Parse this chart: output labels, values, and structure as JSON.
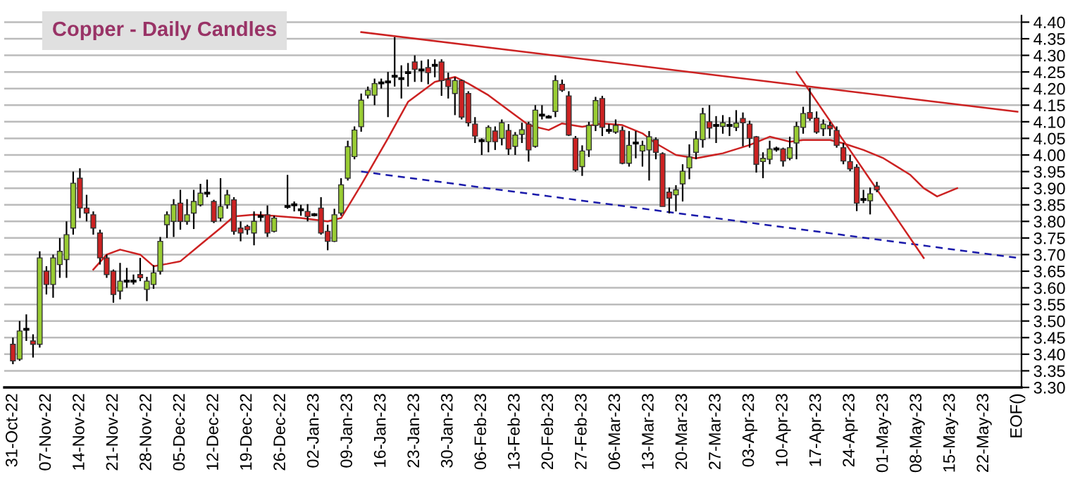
{
  "chart_data": {
    "type": "candlestick",
    "title": "Copper - Daily Candles",
    "ylim": [
      3.3,
      4.42
    ],
    "categories": [
      "31-Oct-22",
      null,
      null,
      null,
      null,
      "07-Nov-22",
      null,
      null,
      null,
      null,
      "14-Nov-22",
      null,
      null,
      null,
      null,
      "21-Nov-22",
      null,
      null,
      null,
      null,
      "28-Nov-22",
      null,
      null,
      null,
      null,
      "05-Dec-22",
      null,
      null,
      null,
      null,
      "12-Dec-22",
      null,
      null,
      null,
      null,
      "19-Dec-22",
      null,
      null,
      null,
      null,
      "26-Dec-22",
      null,
      null,
      null,
      null,
      "02-Jan-23",
      null,
      null,
      null,
      null,
      "09-Jan-23",
      null,
      null,
      null,
      null,
      "16-Jan-23",
      null,
      null,
      null,
      null,
      "23-Jan-23",
      null,
      null,
      null,
      null,
      "30-Jan-23",
      null,
      null,
      null,
      null,
      "06-Feb-23",
      null,
      null,
      null,
      null,
      "13-Feb-23",
      null,
      null,
      null,
      null,
      "20-Feb-23",
      null,
      null,
      null,
      null,
      "27-Feb-23",
      null,
      null,
      null,
      null,
      "06-Mar-23",
      null,
      null,
      null,
      null,
      "13-Mar-23",
      null,
      null,
      null,
      null,
      "20-Mar-23",
      null,
      null,
      null,
      null,
      "27-Mar-23",
      null,
      null,
      null,
      null,
      "03-Apr-23",
      null,
      null,
      null,
      null,
      "10-Apr-23",
      null,
      null,
      null,
      null,
      "17-Apr-23",
      null,
      null,
      null,
      null,
      "24-Apr-23",
      null,
      null,
      null,
      null,
      "01-May-23",
      null,
      null,
      null,
      null,
      "08-May-23",
      null,
      null,
      null,
      null,
      "15-May-23",
      null,
      null,
      null,
      null,
      "22-May-23",
      null,
      null,
      null,
      null,
      "EOF()"
    ],
    "yticks": [
      {
        "value": 3.3,
        "label": "3.30"
      },
      {
        "value": 3.35,
        "label": "3.35"
      },
      {
        "value": 3.4,
        "label": "3.40"
      },
      {
        "value": 3.45,
        "label": "3.45"
      },
      {
        "value": 3.5,
        "label": "3.50"
      },
      {
        "value": 3.55,
        "label": "3.55"
      },
      {
        "value": 3.6,
        "label": "3.60"
      },
      {
        "value": 3.65,
        "label": "3.65"
      },
      {
        "value": 3.7,
        "label": "3.70"
      },
      {
        "value": 3.75,
        "label": "3.75"
      },
      {
        "value": 3.8,
        "label": "3.80"
      },
      {
        "value": 3.85,
        "label": "3.85"
      },
      {
        "value": 3.9,
        "label": "3.90"
      },
      {
        "value": 3.95,
        "label": "3.95"
      },
      {
        "value": 4.0,
        "label": "4.00"
      },
      {
        "value": 4.05,
        "label": "4.05"
      },
      {
        "value": 4.1,
        "label": "4.10"
      },
      {
        "value": 4.15,
        "label": "4.15"
      },
      {
        "value": 4.2,
        "label": "4.20"
      },
      {
        "value": 4.25,
        "label": "4.25"
      },
      {
        "value": 4.3,
        "label": "4.30"
      },
      {
        "value": 4.35,
        "label": "4.35"
      },
      {
        "value": 4.4,
        "label": "4.40"
      }
    ],
    "grid": "y",
    "ohlc": [
      [
        3.43,
        3.45,
        3.37,
        3.38
      ],
      [
        3.385,
        3.5,
        3.38,
        3.47
      ],
      [
        3.475,
        3.52,
        3.44,
        3.475
      ],
      [
        3.44,
        3.46,
        3.39,
        3.43
      ],
      [
        3.43,
        3.71,
        3.42,
        3.69
      ],
      [
        3.65,
        3.665,
        3.58,
        3.61
      ],
      [
        3.61,
        3.7,
        3.57,
        3.69
      ],
      [
        3.67,
        3.75,
        3.63,
        3.71
      ],
      [
        3.685,
        3.8,
        3.63,
        3.76
      ],
      [
        3.78,
        3.95,
        3.76,
        3.915
      ],
      [
        3.93,
        3.96,
        3.81,
        3.84
      ],
      [
        3.84,
        3.88,
        3.8,
        3.825
      ],
      [
        3.82,
        3.83,
        3.76,
        3.78
      ],
      [
        3.765,
        3.775,
        3.67,
        3.69
      ],
      [
        3.69,
        3.7,
        3.63,
        3.64
      ],
      [
        3.65,
        3.655,
        3.555,
        3.58
      ],
      [
        3.59,
        3.675,
        3.565,
        3.62
      ],
      [
        3.62,
        3.66,
        3.6,
        3.62
      ],
      [
        3.62,
        3.64,
        3.61,
        3.62
      ],
      [
        3.64,
        3.69,
        3.62,
        3.63
      ],
      [
        3.595,
        3.633,
        3.56,
        3.62
      ],
      [
        3.61,
        3.668,
        3.597,
        3.645
      ],
      [
        3.65,
        3.753,
        3.64,
        3.74
      ],
      [
        3.79,
        3.83,
        3.75,
        3.82
      ],
      [
        3.8,
        3.867,
        3.753,
        3.85
      ],
      [
        3.855,
        3.895,
        3.775,
        3.8
      ],
      [
        3.8,
        3.867,
        3.79,
        3.82
      ],
      [
        3.825,
        3.895,
        3.777,
        3.86
      ],
      [
        3.85,
        3.913,
        3.845,
        3.885
      ],
      [
        3.885,
        3.926,
        3.873,
        3.885
      ],
      [
        3.86,
        3.865,
        3.795,
        3.8
      ],
      [
        3.81,
        3.93,
        3.8,
        3.845
      ],
      [
        3.85,
        3.895,
        3.838,
        3.88
      ],
      [
        3.865,
        3.873,
        3.76,
        3.77
      ],
      [
        3.78,
        3.8,
        3.74,
        3.765
      ],
      [
        3.785,
        3.79,
        3.76,
        3.775
      ],
      [
        3.765,
        3.83,
        3.728,
        3.8
      ],
      [
        3.815,
        3.83,
        3.8,
        3.815
      ],
      [
        3.82,
        3.848,
        3.753,
        3.765
      ],
      [
        3.77,
        3.817,
        3.767,
        3.81
      ],
      null,
      [
        3.845,
        3.94,
        3.838,
        3.845
      ],
      [
        3.85,
        3.86,
        3.83,
        3.85
      ],
      [
        3.835,
        3.85,
        3.817,
        3.835
      ],
      [
        3.83,
        3.852,
        3.8,
        3.815
      ],
      [
        3.82,
        3.825,
        3.815,
        3.82
      ],
      [
        3.84,
        3.873,
        3.76,
        3.765
      ],
      [
        3.77,
        3.79,
        3.713,
        3.74
      ],
      [
        3.74,
        3.838,
        3.738,
        3.82
      ],
      [
        3.825,
        3.93,
        3.817,
        3.91
      ],
      [
        3.93,
        4.043,
        3.923,
        4.025
      ],
      [
        3.995,
        4.086,
        3.987,
        4.075
      ],
      [
        4.085,
        4.185,
        4.07,
        4.165
      ],
      [
        4.18,
        4.206,
        4.17,
        4.195
      ],
      [
        4.18,
        4.23,
        4.15,
        4.215
      ],
      [
        4.217,
        4.23,
        4.2,
        4.217
      ],
      [
        4.22,
        4.25,
        4.114,
        4.22
      ],
      [
        4.237,
        4.355,
        4.206,
        4.237
      ],
      [
        4.23,
        4.27,
        4.17,
        4.23
      ],
      [
        4.248,
        4.277,
        4.206,
        4.248
      ],
      [
        4.28,
        4.3,
        4.22,
        4.258
      ],
      [
        4.256,
        4.284,
        4.22,
        4.256
      ],
      [
        4.263,
        4.288,
        4.213,
        4.248
      ],
      [
        4.27,
        4.288,
        4.234,
        4.27
      ],
      [
        4.28,
        4.288,
        4.178,
        4.224
      ],
      [
        4.227,
        4.248,
        4.17,
        4.206
      ],
      [
        4.185,
        4.234,
        4.12,
        4.224
      ],
      [
        4.224,
        4.227,
        4.107,
        4.114
      ],
      [
        4.185,
        4.192,
        4.086,
        4.097
      ],
      [
        4.093,
        4.114,
        4.036,
        4.057
      ],
      [
        4.043,
        4.05,
        4.0,
        4.043
      ],
      [
        4.04,
        4.089,
        4.008,
        4.083
      ],
      [
        4.072,
        4.086,
        4.015,
        4.04
      ],
      [
        4.05,
        4.107,
        4.029,
        4.097
      ],
      [
        4.074,
        4.093,
        4.0,
        4.018
      ],
      [
        4.026,
        4.069,
        4.0,
        4.06
      ],
      [
        4.062,
        4.097,
        4.036,
        4.076
      ],
      [
        4.093,
        4.1,
        3.98,
        4.015
      ],
      [
        4.026,
        4.15,
        4.022,
        4.135
      ],
      [
        4.12,
        4.15,
        4.107,
        4.12
      ],
      [
        4.114,
        4.12,
        4.11,
        4.114
      ],
      [
        4.131,
        4.24,
        4.114,
        4.224
      ],
      [
        4.213,
        4.227,
        4.19,
        4.195
      ],
      [
        4.178,
        4.192,
        4.057,
        4.06
      ],
      [
        4.05,
        4.057,
        3.95,
        3.955
      ],
      [
        3.965,
        4.029,
        3.937,
        4.012
      ],
      [
        4.015,
        4.1,
        3.994,
        4.089
      ],
      [
        4.089,
        4.175,
        4.072,
        4.164
      ],
      [
        4.17,
        4.178,
        4.057,
        4.083
      ],
      [
        4.074,
        4.093,
        4.064,
        4.074
      ],
      [
        4.069,
        4.107,
        4.064,
        4.089
      ],
      [
        4.074,
        4.086,
        3.972,
        3.975
      ],
      [
        3.975,
        4.072,
        3.965,
        4.029
      ],
      [
        4.036,
        4.072,
        3.99,
        4.036
      ],
      [
        4.012,
        4.043,
        3.965,
        4.029
      ],
      [
        4.015,
        4.072,
        3.923,
        4.055
      ],
      [
        4.046,
        4.053,
        3.987,
        4.008
      ],
      [
        4.004,
        4.008,
        3.845,
        3.845
      ],
      [
        3.888,
        3.902,
        3.824,
        3.87
      ],
      [
        3.88,
        3.909,
        3.83,
        3.895
      ],
      [
        3.913,
        3.972,
        3.86,
        3.951
      ],
      [
        3.961,
        4.032,
        3.927,
        3.994
      ],
      [
        4.008,
        4.072,
        3.987,
        4.048
      ],
      [
        4.046,
        4.142,
        4.022,
        4.124
      ],
      [
        4.1,
        4.15,
        4.05,
        4.081
      ],
      [
        4.089,
        4.117,
        4.036,
        4.089
      ],
      [
        4.086,
        4.12,
        4.064,
        4.097
      ],
      [
        4.089,
        4.114,
        4.057,
        4.089
      ],
      [
        4.083,
        4.135,
        4.072,
        4.096
      ],
      [
        4.11,
        4.128,
        4.026,
        4.097
      ],
      [
        4.093,
        4.103,
        4.022,
        4.05
      ],
      [
        4.055,
        4.057,
        3.947,
        3.972
      ],
      [
        3.98,
        4.008,
        3.93,
        3.99
      ],
      [
        3.987,
        4.043,
        3.972,
        4.018
      ],
      [
        4.018,
        4.025,
        4.01,
        4.018
      ],
      [
        4.018,
        4.022,
        3.965,
        3.982
      ],
      [
        3.99,
        4.055,
        3.984,
        4.022
      ],
      [
        4.036,
        4.1,
        3.987,
        4.086
      ],
      [
        4.083,
        4.145,
        4.064,
        4.125
      ],
      [
        4.128,
        4.202,
        4.103,
        4.11
      ],
      [
        4.111,
        4.131,
        4.064,
        4.069
      ],
      [
        4.079,
        4.107,
        4.057,
        4.093
      ],
      [
        4.089,
        4.1,
        4.057,
        4.079
      ],
      [
        4.074,
        4.086,
        4.022,
        4.029
      ],
      [
        4.022,
        4.036,
        3.972,
        3.982
      ],
      [
        3.98,
        4.0,
        3.951,
        3.958
      ],
      [
        3.963,
        3.972,
        3.831,
        3.855
      ],
      [
        3.866,
        3.895,
        3.855,
        3.866
      ],
      [
        3.862,
        3.902,
        3.821,
        3.883
      ],
      [
        3.906,
        3.919,
        3.888,
        3.895
      ],
      null,
      null,
      null,
      null,
      null,
      null,
      null,
      null,
      null,
      null,
      null,
      null,
      null,
      null,
      null,
      null,
      null,
      null,
      null,
      null,
      null
    ],
    "colors": [
      "#cc2222",
      "#99cc33",
      "#000000",
      "#cc2222",
      "#99cc33",
      "#cc2222",
      "#99cc33",
      "#99cc33",
      "#99cc33",
      "#99cc33",
      "#cc2222",
      "#cc2222",
      "#cc2222",
      "#cc2222",
      "#cc2222",
      "#cc2222",
      "#99cc33",
      "#000000",
      "#000000",
      "#cc2222",
      "#99cc33",
      "#99cc33",
      "#99cc33",
      "#99cc33",
      "#99cc33",
      "#cc2222",
      "#99cc33",
      "#99cc33",
      "#99cc33",
      "#000000",
      "#cc2222",
      "#99cc33",
      "#99cc33",
      "#cc2222",
      "#cc2222",
      "#cc2222",
      "#99cc33",
      "#000000",
      "#cc2222",
      "#99cc33",
      null,
      "#000000",
      "#000000",
      "#000000",
      "#cc2222",
      "#000000",
      "#cc2222",
      "#cc2222",
      "#99cc33",
      "#99cc33",
      "#99cc33",
      "#99cc33",
      "#99cc33",
      "#99cc33",
      "#99cc33",
      "#000000",
      "#000000",
      "#000000",
      "#000000",
      "#000000",
      "#cc2222",
      "#000000",
      "#cc2222",
      "#000000",
      "#cc2222",
      "#cc2222",
      "#99cc33",
      "#cc2222",
      "#cc2222",
      "#cc2222",
      "#000000",
      "#99cc33",
      "#cc2222",
      "#99cc33",
      "#cc2222",
      "#99cc33",
      "#99cc33",
      "#cc2222",
      "#99cc33",
      "#000000",
      "#000000",
      "#99cc33",
      "#cc2222",
      "#cc2222",
      "#cc2222",
      "#99cc33",
      "#99cc33",
      "#99cc33",
      "#cc2222",
      "#000000",
      "#99cc33",
      "#cc2222",
      "#99cc33",
      "#000000",
      "#99cc33",
      "#99cc33",
      "#cc2222",
      "#cc2222",
      "#cc2222",
      "#99cc33",
      "#99cc33",
      "#99cc33",
      "#99cc33",
      "#99cc33",
      "#cc2222",
      "#000000",
      "#99cc33",
      "#000000",
      "#99cc33",
      "#cc2222",
      "#cc2222",
      "#cc2222",
      "#99cc33",
      "#99cc33",
      "#000000",
      "#cc2222",
      "#99cc33",
      "#99cc33",
      "#99cc33",
      "#cc2222",
      "#cc2222",
      "#99cc33",
      "#cc2222",
      "#cc2222",
      "#cc2222",
      "#cc2222",
      "#cc2222",
      "#000000",
      "#99cc33",
      "#cc2222",
      null,
      null,
      null,
      null,
      null,
      null,
      null,
      null,
      null,
      null,
      null,
      null,
      null,
      null,
      null,
      null,
      null,
      null,
      null,
      null,
      null
    ],
    "series": [
      {
        "type": "line",
        "color": "#cc2222",
        "values": [
          null,
          null,
          null,
          null,
          null,
          null,
          null,
          null,
          null,
          null,
          null,
          null,
          3.655,
          null,
          3.7,
          null,
          3.715,
          null,
          null,
          3.7,
          null,
          3.665,
          null,
          3.672,
          null,
          3.68,
          null,
          null,
          3.73,
          null,
          null,
          3.78,
          null,
          3.815,
          null,
          null,
          3.82,
          null,
          3.818,
          null,
          3.815,
          null,
          null,
          3.81,
          null,
          null,
          null,
          3.8,
          null,
          3.81,
          null,
          null,
          3.91,
          null,
          null,
          null,
          4.05,
          null,
          null,
          4.16,
          null,
          null,
          null,
          4.22,
          null,
          null,
          4.235,
          null,
          4.215,
          null,
          null,
          4.18,
          null,
          null,
          null,
          4.12,
          null,
          4.09,
          null,
          null,
          4.075,
          null,
          4.095,
          null,
          null,
          4.085,
          null,
          null,
          4.095,
          null,
          null,
          4.09,
          null,
          null,
          4.065,
          null,
          4.035,
          null,
          null,
          4.0,
          null,
          null,
          3.99,
          null,
          null,
          null,
          4.005,
          null,
          null,
          null,
          4.03,
          null,
          null,
          4.055,
          null,
          null,
          4.04,
          null,
          4.045,
          null,
          null,
          null,
          4.045,
          null,
          4.035,
          null,
          null,
          4.015,
          null,
          null,
          3.99,
          null,
          null,
          null,
          3.94,
          null,
          3.9,
          null,
          3.875,
          null,
          null,
          3.9,
          null,
          null,
          null,
          null,
          null,
          null,
          null,
          null,
          null
        ]
      },
      {
        "type": "line",
        "color": "#cc2222",
        "values": [
          null,
          null,
          null,
          null,
          null,
          null,
          null,
          null,
          null,
          null,
          null,
          null,
          null,
          null,
          null,
          null,
          null,
          null,
          null,
          null,
          null,
          null,
          null,
          null,
          null,
          null,
          null,
          null,
          null,
          null,
          null,
          null,
          null,
          null,
          null,
          null,
          null,
          null,
          null,
          null,
          null,
          null,
          null,
          null,
          null,
          null,
          null,
          null,
          null,
          null,
          null,
          null,
          4.37,
          null,
          null,
          null,
          null,
          null,
          null,
          null,
          null,
          null,
          null,
          null,
          null,
          null,
          null,
          null,
          null,
          null,
          null,
          null,
          null,
          null,
          null,
          null,
          null,
          null,
          null,
          null,
          null,
          null,
          null,
          null,
          null,
          null,
          null,
          null,
          null,
          null,
          null,
          null,
          null,
          null,
          null,
          null,
          null,
          null,
          null,
          null,
          null,
          null,
          null,
          null,
          null,
          null,
          null,
          null,
          null,
          null,
          null,
          null,
          null,
          null,
          null,
          null,
          null,
          null,
          null,
          null,
          null,
          null,
          null,
          null,
          null,
          null,
          null,
          null,
          null,
          null,
          null,
          null,
          null,
          null,
          null,
          null,
          null,
          null,
          null,
          null,
          null,
          null,
          null,
          null,
          null,
          null,
          null,
          null,
          null,
          null,
          4.13
        ]
      },
      {
        "type": "line",
        "color": "#1a1aaa",
        "line_style": "dashed",
        "values": [
          null,
          null,
          null,
          null,
          null,
          null,
          null,
          null,
          null,
          null,
          null,
          null,
          null,
          null,
          null,
          null,
          null,
          null,
          null,
          null,
          null,
          null,
          null,
          null,
          null,
          null,
          null,
          null,
          null,
          null,
          null,
          null,
          null,
          null,
          null,
          null,
          null,
          null,
          null,
          null,
          null,
          null,
          null,
          null,
          null,
          null,
          null,
          null,
          null,
          null,
          null,
          null,
          3.95,
          null,
          null,
          null,
          null,
          null,
          null,
          null,
          null,
          null,
          null,
          null,
          null,
          null,
          null,
          null,
          null,
          null,
          null,
          null,
          null,
          null,
          null,
          null,
          null,
          null,
          null,
          null,
          null,
          null,
          null,
          null,
          null,
          null,
          null,
          null,
          null,
          null,
          null,
          null,
          null,
          null,
          null,
          null,
          null,
          null,
          null,
          null,
          null,
          null,
          null,
          null,
          null,
          null,
          null,
          null,
          null,
          null,
          null,
          null,
          null,
          null,
          null,
          null,
          null,
          null,
          null,
          null,
          null,
          null,
          null,
          null,
          null,
          null,
          null,
          null,
          null,
          null,
          null,
          null,
          null,
          null,
          null,
          null,
          null,
          null,
          null,
          null,
          null,
          null,
          null,
          null,
          null,
          null,
          null,
          null,
          null,
          null,
          3.69
        ]
      },
      {
        "type": "line",
        "color": "#cc2222",
        "values": [
          null,
          null,
          null,
          null,
          null,
          null,
          null,
          null,
          null,
          null,
          null,
          null,
          null,
          null,
          null,
          null,
          null,
          null,
          null,
          null,
          null,
          null,
          null,
          null,
          null,
          null,
          null,
          null,
          null,
          null,
          null,
          null,
          null,
          null,
          null,
          null,
          null,
          null,
          null,
          null,
          null,
          null,
          null,
          null,
          null,
          null,
          null,
          null,
          null,
          null,
          null,
          null,
          null,
          null,
          null,
          null,
          null,
          null,
          null,
          null,
          null,
          null,
          null,
          null,
          null,
          null,
          null,
          null,
          null,
          null,
          null,
          null,
          null,
          null,
          null,
          null,
          null,
          null,
          null,
          null,
          null,
          null,
          null,
          null,
          null,
          null,
          null,
          null,
          null,
          null,
          null,
          null,
          null,
          null,
          null,
          null,
          null,
          null,
          null,
          null,
          null,
          null,
          null,
          null,
          null,
          null,
          null,
          null,
          null,
          null,
          null,
          null,
          null,
          null,
          null,
          null,
          null,
          4.25,
          null,
          null,
          null,
          null,
          null,
          null,
          null,
          null,
          null,
          null,
          null,
          null,
          null,
          null,
          null,
          null,
          null,
          null,
          3.69,
          null,
          null,
          null,
          null,
          null,
          null,
          null,
          null,
          null,
          null,
          null,
          null,
          null,
          null
        ]
      }
    ]
  }
}
